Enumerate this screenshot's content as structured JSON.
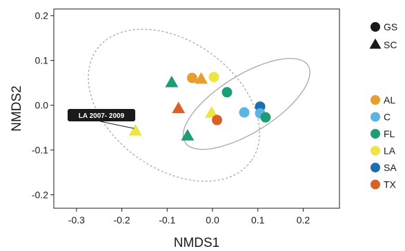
{
  "chart_data": {
    "type": "scatter",
    "title": "",
    "xlabel": "NMDS1",
    "ylabel": "NMDS2",
    "xlim": [
      -0.35,
      0.28
    ],
    "ylim": [
      -0.23,
      0.215
    ],
    "xticks": [
      -0.3,
      -0.2,
      -0.1,
      0.0,
      0.1,
      0.2
    ],
    "yticks": [
      -0.2,
      -0.1,
      0.0,
      0.1,
      0.2
    ],
    "xtick_labels": [
      "-0.3",
      "-0.2",
      "-0.1",
      "0.0",
      "0.1",
      "0.2"
    ],
    "ytick_labels": [
      "-0.2",
      "-0.1",
      "0.0",
      "0.1",
      "0.2"
    ],
    "grid": false,
    "legend_position": "right",
    "shape_legend": [
      {
        "name": "GS",
        "shape": "circle"
      },
      {
        "name": "SC",
        "shape": "triangle"
      }
    ],
    "color_legend": [
      {
        "name": "AL",
        "color": "#E69F2E"
      },
      {
        "name": "C",
        "color": "#5CB4E4"
      },
      {
        "name": "FL",
        "color": "#1B9E77"
      },
      {
        "name": "LA",
        "color": "#EDE544"
      },
      {
        "name": "SA",
        "color": "#1B6FAE"
      },
      {
        "name": "TX",
        "color": "#D8612A"
      }
    ],
    "points": [
      {
        "x": -0.045,
        "y": 0.061,
        "shape": "circle",
        "group": "AL"
      },
      {
        "x": -0.025,
        "y": 0.058,
        "shape": "triangle",
        "group": "AL"
      },
      {
        "x": 0.003,
        "y": 0.063,
        "shape": "circle",
        "group": "LA"
      },
      {
        "x": -0.09,
        "y": 0.05,
        "shape": "triangle",
        "group": "FL"
      },
      {
        "x": 0.032,
        "y": 0.029,
        "shape": "circle",
        "group": "FL"
      },
      {
        "x": -0.075,
        "y": -0.008,
        "shape": "triangle",
        "group": "TX"
      },
      {
        "x": -0.002,
        "y": -0.018,
        "shape": "triangle",
        "group": "LA"
      },
      {
        "x": 0.01,
        "y": -0.033,
        "shape": "circle",
        "group": "TX"
      },
      {
        "x": 0.07,
        "y": -0.016,
        "shape": "circle",
        "group": "C"
      },
      {
        "x": 0.105,
        "y": -0.003,
        "shape": "circle",
        "group": "SA"
      },
      {
        "x": 0.105,
        "y": -0.018,
        "shape": "circle",
        "group": "C"
      },
      {
        "x": 0.117,
        "y": -0.027,
        "shape": "circle",
        "group": "FL"
      },
      {
        "x": -0.055,
        "y": -0.069,
        "shape": "triangle",
        "group": "FL"
      },
      {
        "x": -0.17,
        "y": -0.058,
        "shape": "triangle",
        "group": "LA"
      }
    ],
    "ellipses": [
      {
        "group": "SC",
        "style": "dashed",
        "cx": -0.085,
        "cy": 0.0,
        "rx": 0.21,
        "ry": 0.142,
        "angle_deg": 36
      },
      {
        "group": "GS",
        "style": "solid",
        "cx": 0.075,
        "cy": 0.003,
        "rx": 0.16,
        "ry": 0.064,
        "angle_deg": -32
      }
    ],
    "annotations": [
      {
        "text": "LA 2007- 2009",
        "target": {
          "x": -0.17,
          "y": -0.058
        }
      }
    ]
  }
}
